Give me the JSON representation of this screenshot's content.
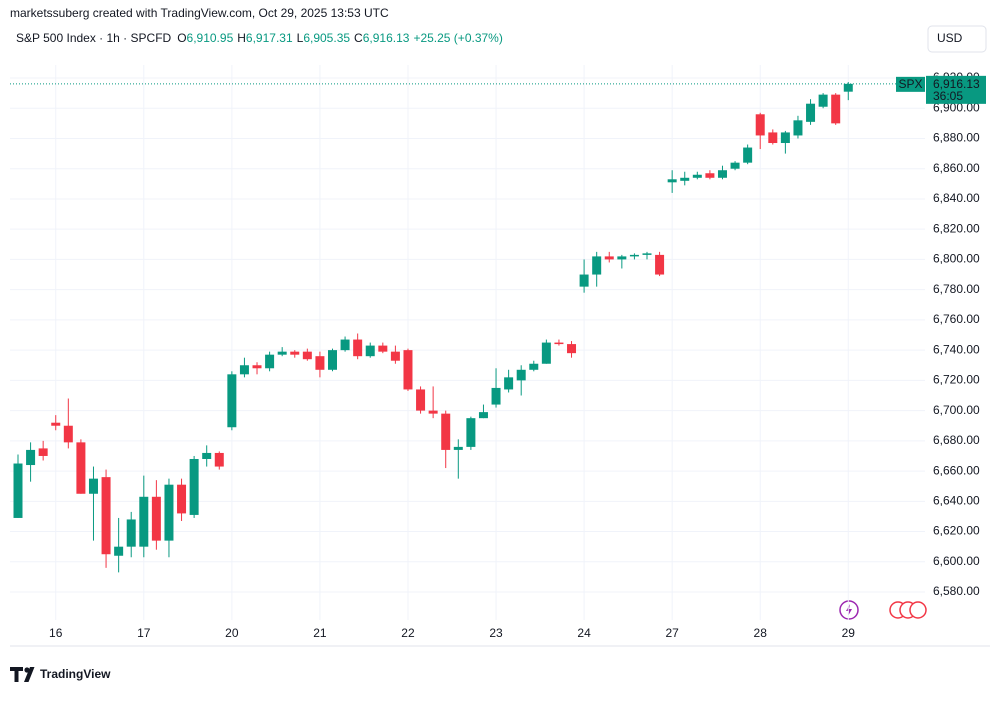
{
  "header": {
    "credit": "marketssuberg created with TradingView.com, Oct 29, 2025 13:53 UTC",
    "symbol": "S&P 500 Index · 1h · SPCFD",
    "ohlc": [
      {
        "key": "O",
        "value": "6,910.95"
      },
      {
        "key": "H",
        "value": "6,917.31"
      },
      {
        "key": "L",
        "value": "6,905.35"
      },
      {
        "key": "C",
        "value": "6,916.13"
      }
    ],
    "change": "+25.25 (+0.37%)",
    "currency": "USD"
  },
  "chart_data": {
    "type": "candlestick",
    "categories": [
      null,
      null,
      null,
      "16",
      null,
      null,
      null,
      null,
      null,
      null,
      "17",
      null,
      null,
      null,
      null,
      null,
      null,
      "20",
      null,
      null,
      null,
      null,
      null,
      null,
      "21",
      null,
      null,
      null,
      null,
      null,
      null,
      "22",
      null,
      null,
      null,
      null,
      null,
      null,
      "23",
      null,
      null,
      null,
      null,
      null,
      null,
      "24",
      null,
      null,
      null,
      null,
      null,
      null,
      "27",
      null,
      null,
      null,
      null,
      null,
      null,
      "28",
      null,
      null,
      null,
      null,
      null,
      null,
      "29"
    ],
    "open": [
      6629,
      6664,
      6675,
      6692,
      6690,
      6679,
      6645,
      6656,
      6604,
      6610,
      6610,
      6643,
      6614,
      6651,
      6631,
      6668,
      6672,
      6689,
      6724,
      6730,
      6728,
      6737,
      6739,
      6739,
      6736,
      6727,
      6740,
      6747,
      6736,
      6743,
      6739,
      6740,
      6714,
      6700,
      6698,
      6674,
      6676,
      6695,
      6704,
      6714,
      6720,
      6727,
      6731,
      6745,
      6744,
      6782,
      6790,
      6802,
      6800,
      6802,
      6803,
      6803,
      6851,
      6852,
      6854,
      6857,
      6854,
      6860,
      6864,
      6896,
      6884,
      6877,
      6882,
      6891,
      6901,
      6909,
      6910.95
    ],
    "high": [
      6671,
      6679,
      6680,
      6697,
      6708,
      6681,
      6663,
      6661,
      6629,
      6633,
      6657,
      6654,
      6655,
      6655,
      6670,
      6677,
      6673,
      6726,
      6735,
      6732,
      6739,
      6742,
      6740,
      6741,
      6739,
      6741,
      6749,
      6751,
      6745,
      6745,
      6743,
      6741,
      6716,
      6716,
      6700,
      6681,
      6696,
      6704,
      6728,
      6727,
      6730,
      6733,
      6747,
      6747,
      6746,
      6800,
      6805,
      6805,
      6803,
      6804,
      6805,
      6805,
      6859,
      6858,
      6858,
      6859,
      6862,
      6865,
      6876,
      6897,
      6886,
      6885,
      6895,
      6906,
      6910,
      6910,
      6917.31
    ],
    "low": [
      6629,
      6653,
      6667,
      6687,
      6675,
      6645,
      6614,
      6596,
      6593,
      6603,
      6603,
      6608,
      6603,
      6627,
      6629,
      6663,
      6661,
      6687,
      6722,
      6724,
      6726,
      6736,
      6735,
      6733,
      6722,
      6726,
      6739,
      6734,
      6735,
      6738,
      6731,
      6713,
      6698,
      6695,
      6662,
      6655,
      6674,
      6695,
      6702,
      6712,
      6710,
      6726,
      6731,
      6743,
      6735,
      6778,
      6782,
      6798,
      6794,
      6800,
      6800,
      6789,
      6844,
      6849,
      6853,
      6853,
      6853,
      6859,
      6863,
      6873,
      6876,
      6870,
      6880,
      6889,
      6900,
      6889,
      6905.35
    ],
    "close": [
      6665,
      6674,
      6670,
      6690,
      6679,
      6645,
      6655,
      6605,
      6610,
      6628,
      6643,
      6614,
      6651,
      6632,
      6668,
      6672,
      6663,
      6724,
      6730,
      6728,
      6737,
      6739,
      6737,
      6734,
      6727,
      6740,
      6747,
      6736,
      6743,
      6739,
      6733,
      6714,
      6700,
      6698,
      6674,
      6676,
      6695,
      6699,
      6715,
      6722,
      6727,
      6731,
      6745,
      6744,
      6738,
      6790,
      6802,
      6800,
      6802,
      6803,
      6804,
      6790,
      6853,
      6854,
      6856,
      6854,
      6859,
      6864,
      6874,
      6882,
      6877,
      6884,
      6892,
      6903,
      6909,
      6890,
      6916.13
    ],
    "up_color": "#089981",
    "down_color": "#f23645",
    "ylim": [
      6561.5,
      6928.6
    ],
    "yticks": [
      {
        "value": 6580,
        "label": "6,580.00"
      },
      {
        "value": 6600,
        "label": "6,600.00"
      },
      {
        "value": 6620,
        "label": "6,620.00"
      },
      {
        "value": 6640,
        "label": "6,640.00"
      },
      {
        "value": 6660,
        "label": "6,660.00"
      },
      {
        "value": 6680,
        "label": "6,680.00"
      },
      {
        "value": 6700,
        "label": "6,700.00"
      },
      {
        "value": 6720,
        "label": "6,720.00"
      },
      {
        "value": 6740,
        "label": "6,740.00"
      },
      {
        "value": 6760,
        "label": "6,760.00"
      },
      {
        "value": 6780,
        "label": "6,780.00"
      },
      {
        "value": 6800,
        "label": "6,800.00"
      },
      {
        "value": 6820,
        "label": "6,820.00"
      },
      {
        "value": 6840,
        "label": "6,840.00"
      },
      {
        "value": 6860,
        "label": "6,860.00"
      },
      {
        "value": 6880,
        "label": "6,880.00"
      },
      {
        "value": 6900,
        "label": "6,900.00"
      },
      {
        "value": 6920,
        "label": "6,920.00"
      }
    ],
    "grid": true,
    "last_price": {
      "value": 6916.13,
      "label": "6,916.13"
    },
    "symbol_tag": "SPX",
    "countdown": "36:05"
  },
  "footer": {
    "logo": "TradingView"
  }
}
